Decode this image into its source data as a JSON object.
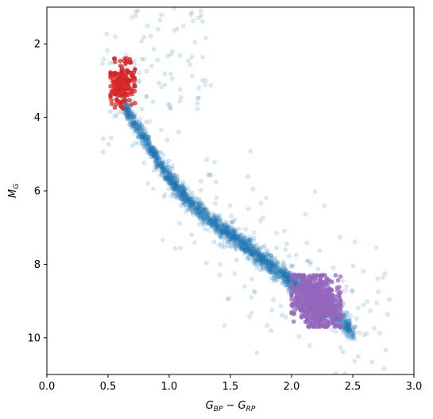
{
  "chart_data": {
    "type": "scatter",
    "title": "",
    "xlabel": {
      "base": "G",
      "sub1": "BP",
      "mid": " − G",
      "sub2": "RP"
    },
    "ylabel": {
      "base": "M",
      "sub": "G"
    },
    "xlim": [
      0.0,
      3.0
    ],
    "ylim": [
      11.0,
      1.0
    ],
    "y_inverted": true,
    "xticks": [
      0.0,
      0.5,
      1.0,
      1.5,
      2.0,
      2.5,
      3.0
    ],
    "xtick_labels": [
      "0.0",
      "0.5",
      "1.0",
      "1.5",
      "2.0",
      "2.5",
      "3.0"
    ],
    "yticks": [
      2,
      4,
      6,
      8,
      10
    ],
    "ytick_labels": [
      "2",
      "4",
      "6",
      "8",
      "10"
    ],
    "grid": false,
    "legend": "none",
    "colors": {
      "main_sequence": "#1f77b4",
      "upper_group": "#d62728",
      "lower_group": "#9467bd"
    },
    "series": [
      {
        "key": "main_sequence",
        "color": "#1f77b4",
        "alpha": 0.15,
        "count": 2600,
        "locus": [
          [
            0.62,
            3.6
          ],
          [
            0.7,
            4.05
          ],
          [
            0.8,
            4.6
          ],
          [
            0.9,
            5.15
          ],
          [
            1.0,
            5.65
          ],
          [
            1.1,
            6.05
          ],
          [
            1.2,
            6.4
          ],
          [
            1.3,
            6.7
          ],
          [
            1.4,
            6.95
          ],
          [
            1.5,
            7.2
          ],
          [
            1.6,
            7.45
          ],
          [
            1.7,
            7.7
          ],
          [
            1.8,
            7.95
          ],
          [
            1.9,
            8.2
          ],
          [
            2.0,
            8.45
          ],
          [
            2.1,
            8.7
          ],
          [
            2.2,
            8.95
          ],
          [
            2.3,
            9.2
          ],
          [
            2.4,
            9.5
          ],
          [
            2.5,
            9.85
          ]
        ],
        "scatter_outliers": 240
      },
      {
        "key": "upper_group",
        "color": "#d62728",
        "alpha": 0.7,
        "count": 190,
        "x_range": [
          0.52,
          0.72
        ],
        "y_range": [
          2.4,
          3.75
        ]
      },
      {
        "key": "lower_group",
        "color": "#9467bd",
        "alpha": 0.7,
        "count": 700,
        "x_range": [
          2.0,
          2.4
        ],
        "y_range": [
          8.3,
          9.7
        ]
      }
    ]
  }
}
